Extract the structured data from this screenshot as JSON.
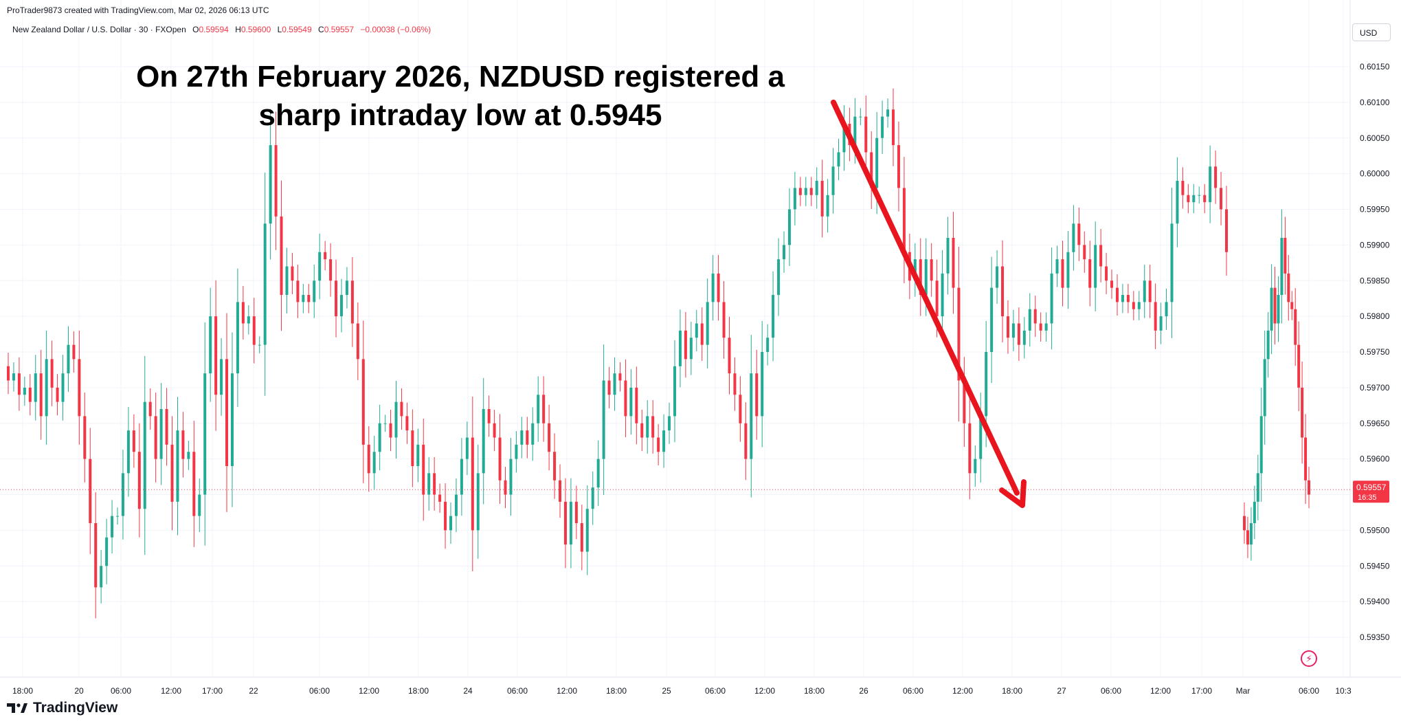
{
  "credit": "ProTrader9873 created with TradingView.com, Mar 02, 2026 06:13 UTC",
  "legend": {
    "symbol": "New Zealand Dollar / U.S. Dollar · 30 · FXOpen",
    "o_label": "O",
    "o": "0.59594",
    "h_label": "H",
    "h": "0.59600",
    "l_label": "L",
    "l": "0.59549",
    "c_label": "C",
    "c": "0.59557",
    "change": "−0.00038 (−0.06%)"
  },
  "currency_button": "USD",
  "headline": {
    "line1": "On 27th February 2026, NZDUSD registered a",
    "line2": "sharp intraday low at 0.5945"
  },
  "brand": {
    "name": "TradingView",
    "icon": "tradingview-logo-icon"
  },
  "colors": {
    "up": "#22ab94",
    "down": "#f23645",
    "arrow": "#e8141e",
    "price_tag": "#f23645"
  },
  "chart_data": {
    "type": "candlestick",
    "symbol": "NZDUSD",
    "timeframe": "30",
    "y_ticks": [
      "0.60150",
      "0.60100",
      "0.60050",
      "0.60000",
      "0.59950",
      "0.59900",
      "0.59850",
      "0.59800",
      "0.59750",
      "0.59700",
      "0.59650",
      "0.59600",
      "0.59550",
      "0.59500",
      "0.59450",
      "0.59400",
      "0.59350"
    ],
    "x_ticks": [
      "18:00",
      "20",
      "06:00",
      "12:00",
      "17:00",
      "22",
      "06:00",
      "12:00",
      "18:00",
      "24",
      "06:00",
      "12:00",
      "18:00",
      "25",
      "06:00",
      "12:00",
      "18:00",
      "26",
      "06:00",
      "12:00",
      "18:00",
      "27",
      "06:00",
      "12:00",
      "17:00",
      "Mar",
      "06:00",
      "10:3"
    ],
    "ylim": [
      0.5931,
      0.6018
    ],
    "last_price": {
      "value": "0.59557",
      "countdown": "16:35"
    },
    "grid": true,
    "annotation": {
      "type": "arrow",
      "from": {
        "x": "26 (about 00:30)",
        "y": 0.601
      },
      "to": {
        "x": "27 (about 18:30)",
        "y": 0.5953
      }
    },
    "series": [
      {
        "name": "segment 1",
        "values": [
          0.5971,
          0.5972,
          0.5969,
          0.597,
          0.5968,
          0.5972,
          0.5966,
          0.5974,
          0.597,
          0.5968,
          0.5972,
          0.5976,
          0.5974,
          0.5966,
          0.596,
          0.5951,
          0.5942,
          0.5945,
          0.5949,
          0.5952,
          0.5952,
          0.5958,
          0.5964,
          0.5961,
          0.5953,
          0.5968,
          0.5966,
          0.596,
          0.5967,
          0.5962,
          0.5954,
          0.5964,
          0.596,
          0.5961,
          0.5952,
          0.5955,
          0.5972,
          0.598,
          0.5969,
          0.5974,
          0.5959,
          0.5972,
          0.5982,
          0.5979,
          0.598,
          0.5976,
          0.5976,
          0.5993,
          0.6004,
          0.5994,
          0.5983,
          0.5987,
          0.5985,
          0.5982,
          0.5983,
          0.5982,
          0.5985,
          0.5989,
          0.5988,
          0.5985,
          0.598,
          0.5983,
          0.5985,
          0.5979,
          0.5974,
          0.5962,
          0.5958,
          0.5961,
          0.5965,
          0.5965,
          0.5963,
          0.5968,
          0.5966,
          0.5964,
          0.5959,
          0.5962,
          0.5955,
          0.5958,
          0.5955,
          0.5954,
          0.595,
          0.5952,
          0.5955,
          0.596,
          0.5963,
          0.595,
          0.5958,
          0.5967,
          0.5965,
          0.5963,
          0.5957,
          0.5955,
          0.596,
          0.5962,
          0.5964,
          0.5962,
          0.5965,
          0.5969,
          0.5965,
          0.5961,
          0.5957,
          0.5954,
          0.5948,
          0.5954,
          0.5951,
          0.5947,
          0.5953,
          0.5956,
          0.596,
          0.5971,
          0.5969,
          0.5972,
          0.5971,
          0.5966,
          0.597,
          0.5965,
          0.5963,
          0.5966,
          0.5963,
          0.5961,
          0.5964,
          0.5966,
          0.5973,
          0.5978,
          0.5974,
          0.5977,
          0.5979,
          0.5976,
          0.5982,
          0.5986,
          0.5982,
          0.5977,
          0.5972,
          0.5969,
          0.5965,
          0.596,
          0.5972,
          0.5966,
          0.5975,
          0.5977,
          0.5983,
          0.5988,
          0.599,
          0.5995,
          0.5998,
          0.5997,
          0.5998,
          0.5997,
          0.5999,
          0.5994,
          0.5997,
          0.6001,
          0.6003,
          0.6007,
          0.6004,
          0.6008,
          0.6008,
          0.6003,
          0.5998,
          0.6005,
          0.6008,
          0.6009,
          0.6004,
          0.5998,
          0.5989,
          0.5985,
          0.5988,
          0.5983,
          0.5988,
          0.5985,
          0.598,
          0.5986,
          0.5991,
          0.5984,
          0.5971,
          0.5965,
          0.5958,
          0.596,
          0.5966,
          0.5975,
          0.5984,
          0.5987,
          0.598,
          0.5977,
          0.5979,
          0.5976,
          0.5978,
          0.5981,
          0.5979,
          0.5978,
          0.5979,
          0.5986,
          0.5988,
          0.5984,
          0.5989,
          0.5993,
          0.599,
          0.5988,
          0.5984,
          0.599,
          0.5987,
          0.5985,
          0.5984,
          0.5982,
          0.5983,
          0.5982,
          0.5981,
          0.5982,
          0.5985,
          0.5982,
          0.5978,
          0.598,
          0.5982,
          0.5993,
          0.5999,
          0.5997,
          0.5996,
          0.5997,
          0.5997,
          0.5996,
          0.6001,
          0.5998,
          0.5995,
          0.5989
        ]
      },
      {
        "name": "segment 2",
        "values": [
          0.595,
          0.5948,
          0.5951,
          0.5954,
          0.5958,
          0.5966,
          0.5974,
          0.5978,
          0.5984,
          0.5979,
          0.5983,
          0.5991,
          0.5986,
          0.5982,
          0.5981,
          0.5976,
          0.597,
          0.5963,
          0.5957,
          0.5955
        ]
      }
    ]
  }
}
